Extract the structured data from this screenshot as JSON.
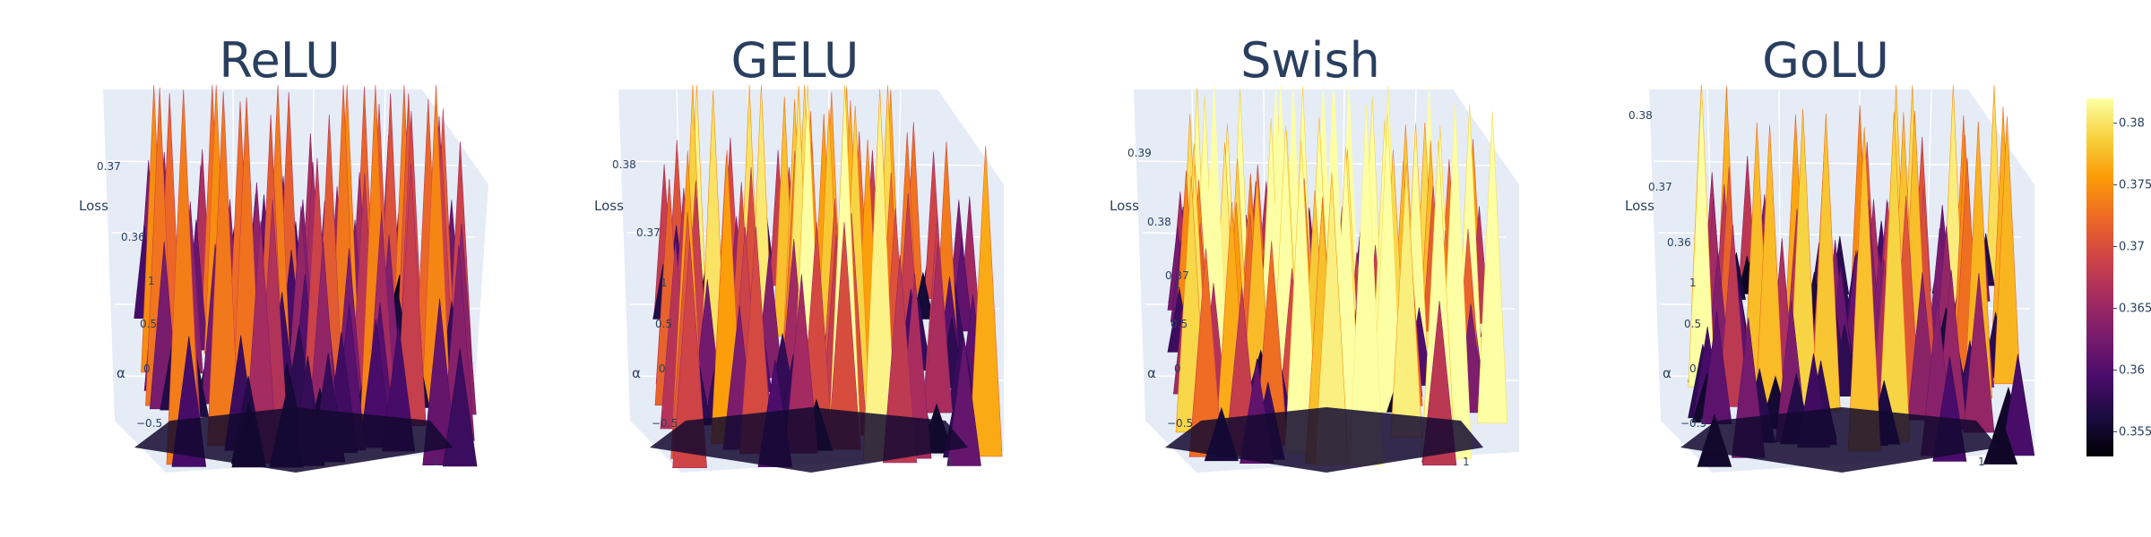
{
  "chart_data": [
    {
      "type": "surface",
      "title": "ReLU",
      "zlabel": "Loss",
      "ylabel": "α",
      "z_ticks": [
        "0.37",
        "0.36"
      ],
      "y_ticks": [
        "1",
        "0.5",
        "0",
        "−0.5"
      ],
      "x_ticks": [
        "",
        "1"
      ],
      "zlim": [
        0.353,
        0.375
      ],
      "seed": 11
    },
    {
      "type": "surface",
      "title": "GELU",
      "zlabel": "Loss",
      "ylabel": "α",
      "z_ticks": [
        "0.38",
        "0.37"
      ],
      "y_ticks": [
        "1",
        "0.5",
        "0",
        "−0.5"
      ],
      "x_ticks": [
        "",
        "1"
      ],
      "zlim": [
        0.353,
        0.383
      ],
      "seed": 23
    },
    {
      "type": "surface",
      "title": "Swish",
      "zlabel": "Loss",
      "ylabel": "α",
      "z_ticks": [
        "0.39",
        "0.38",
        "0.37"
      ],
      "y_ticks": [
        "1",
        "0.5",
        "0",
        "−0.5"
      ],
      "x_ticks": [
        "",
        "1"
      ],
      "zlim": [
        0.353,
        0.392
      ],
      "seed": 37
    },
    {
      "type": "surface",
      "title": "GoLU",
      "zlabel": "Loss",
      "ylabel": "α",
      "z_ticks": [
        "0.38",
        "0.37",
        "0.36"
      ],
      "y_ticks": [
        "1",
        "0.5",
        "0",
        "−0.5"
      ],
      "x_ticks": [
        "",
        "1"
      ],
      "zlim": [
        0.353,
        0.383
      ],
      "seed": 53
    }
  ],
  "colorbar": {
    "colorscale": "Inferno",
    "tick_labels": [
      "0.38",
      "0.375",
      "0.37",
      "0.365",
      "0.36",
      "0.355"
    ],
    "tick_values": [
      0.38,
      0.375,
      0.37,
      0.365,
      0.36,
      0.355
    ],
    "range": [
      0.353,
      0.382
    ],
    "colors": [
      "#000004",
      "#1b0c41",
      "#4a0c6b",
      "#781c6d",
      "#a52c60",
      "#cf4446",
      "#ed6925",
      "#fb9b06",
      "#f7d13d",
      "#fcffa4"
    ]
  },
  "colors": {
    "scene_background": "#e5ecf6",
    "grid": "#ffffff",
    "text": "#2a3f5f"
  }
}
